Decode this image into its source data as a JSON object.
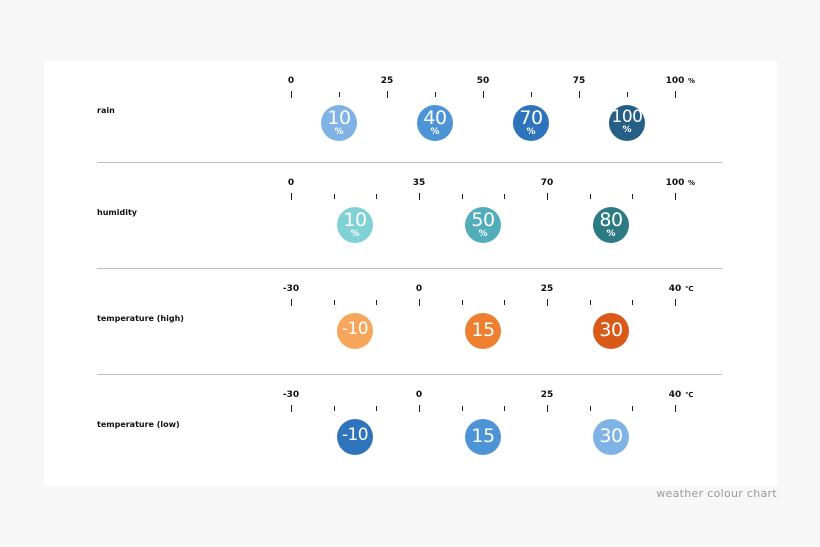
{
  "caption": "weather colour chart",
  "rows": [
    {
      "label": "rain",
      "unit": "%",
      "ticks": [
        "0",
        "25",
        "50",
        "75",
        "100"
      ],
      "minor_between": 1,
      "bubbles": [
        {
          "value": "10",
          "unit": "%",
          "color": "#7fb3e6"
        },
        {
          "value": "40",
          "unit": "%",
          "color": "#4d94d6"
        },
        {
          "value": "70",
          "unit": "%",
          "color": "#2e74bd"
        },
        {
          "value": "100",
          "unit": "%",
          "color": "#265f86"
        }
      ]
    },
    {
      "label": "humidity",
      "unit": "%",
      "ticks": [
        "0",
        "35",
        "70",
        "100"
      ],
      "minor_between": 2,
      "bubbles": [
        {
          "value": "10",
          "unit": "%",
          "color": "#7fd1d4"
        },
        {
          "value": "50",
          "unit": "%",
          "color": "#52adba"
        },
        {
          "value": "80",
          "unit": "%",
          "color": "#2c7b84"
        }
      ]
    },
    {
      "label": "temperature (high)",
      "unit": "℃",
      "ticks": [
        "-30",
        "0",
        "25",
        "40"
      ],
      "minor_between": 2,
      "bubbles": [
        {
          "value": "-10",
          "unit": "",
          "color": "#f6a55a"
        },
        {
          "value": "15",
          "unit": "",
          "color": "#ee7f30"
        },
        {
          "value": "30",
          "unit": "",
          "color": "#d95a18"
        }
      ]
    },
    {
      "label": "temperature (low)",
      "unit": "℃",
      "ticks": [
        "-30",
        "0",
        "25",
        "40"
      ],
      "minor_between": 2,
      "bubbles": [
        {
          "value": "-10",
          "unit": "",
          "color": "#2e74bd"
        },
        {
          "value": "15",
          "unit": "",
          "color": "#4d94d6"
        },
        {
          "value": "30",
          "unit": "",
          "color": "#7fb3e6"
        }
      ]
    }
  ]
}
